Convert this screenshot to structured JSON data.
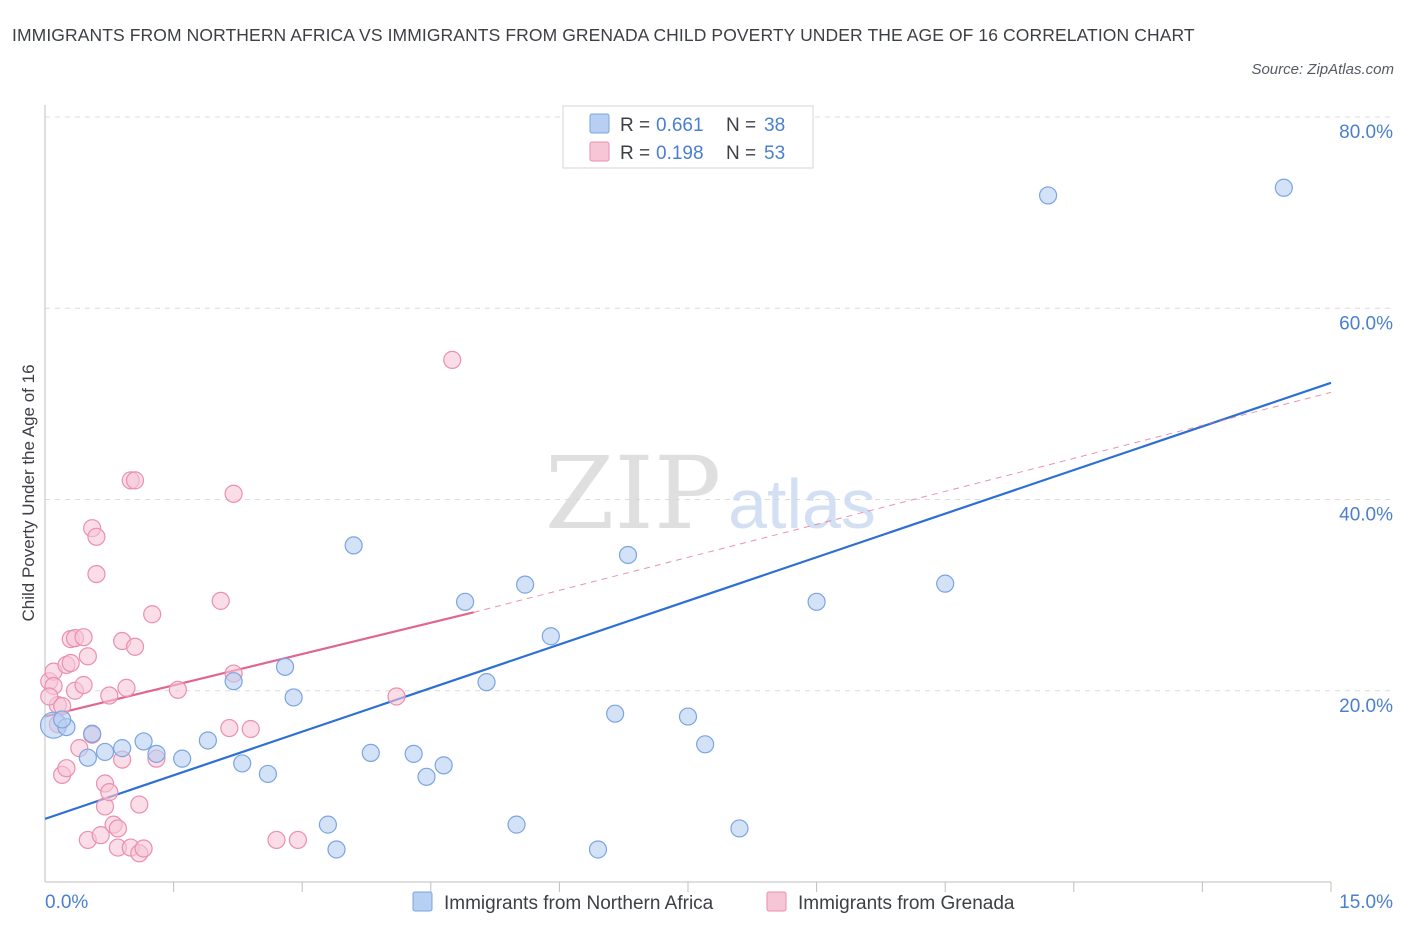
{
  "title": "IMMIGRANTS FROM NORTHERN AFRICA VS IMMIGRANTS FROM GRENADA CHILD POVERTY UNDER THE AGE OF 16 CORRELATION CHART",
  "source": "Source: ZipAtlas.com",
  "watermark": {
    "zip": "ZIP",
    "atlas": "atlas"
  },
  "colors": {
    "blue_fill": "#b7cff2",
    "blue_stroke": "#7ba5e0",
    "blue_line": "#2e6fd3",
    "pink_fill": "#f7c6d6",
    "pink_stroke": "#eb8fae",
    "pink_line": "#e06690",
    "axis_text": "#4a7fd0",
    "grid": "#dcdcdc"
  },
  "legend": {
    "series1": {
      "r_label": "R =",
      "r_value": "0.661",
      "n_label": "N =",
      "n_value": "38"
    },
    "series2": {
      "r_label": "R =",
      "r_value": "0.198",
      "n_label": "N =",
      "n_value": "53"
    }
  },
  "chart_data": {
    "type": "scatter",
    "title": "IMMIGRANTS FROM NORTHERN AFRICA VS IMMIGRANTS FROM GRENADA CHILD POVERTY UNDER THE AGE OF 16 CORRELATION CHART",
    "xlabel": "",
    "ylabel": "Child Poverty Under the Age of 16",
    "xlim": [
      0,
      15
    ],
    "ylim": [
      0,
      80
    ],
    "x_tick_labels": {
      "min": "0.0%",
      "max": "15.0%"
    },
    "y_ticks": [
      20,
      40,
      60,
      80
    ],
    "y_tick_labels": [
      "20.0%",
      "40.0%",
      "60.0%",
      "80.0%"
    ],
    "series": [
      {
        "name": "Immigrants from Northern Africa",
        "color": "blue",
        "points": [
          [
            0.1,
            16.4
          ],
          [
            0.25,
            16.2
          ],
          [
            0.2,
            17.0
          ],
          [
            0.5,
            13.0
          ],
          [
            0.7,
            13.6
          ],
          [
            0.55,
            15.5
          ],
          [
            0.9,
            14.0
          ],
          [
            1.15,
            14.7
          ],
          [
            1.3,
            13.4
          ],
          [
            1.9,
            14.8
          ],
          [
            1.6,
            12.9
          ],
          [
            2.3,
            12.4
          ],
          [
            2.6,
            11.3
          ],
          [
            2.9,
            19.3
          ],
          [
            2.8,
            22.5
          ],
          [
            2.2,
            21.0
          ],
          [
            3.3,
            6.0
          ],
          [
            3.4,
            3.4
          ],
          [
            3.6,
            35.2
          ],
          [
            3.8,
            13.5
          ],
          [
            4.3,
            13.4
          ],
          [
            4.45,
            11.0
          ],
          [
            4.65,
            12.2
          ],
          [
            4.9,
            29.3
          ],
          [
            5.15,
            20.9
          ],
          [
            5.5,
            6.0
          ],
          [
            5.6,
            31.1
          ],
          [
            5.9,
            25.7
          ],
          [
            6.45,
            3.4
          ],
          [
            6.65,
            17.6
          ],
          [
            6.8,
            34.2
          ],
          [
            7.5,
            17.3
          ],
          [
            7.7,
            14.4
          ],
          [
            8.1,
            5.6
          ],
          [
            9.0,
            29.3
          ],
          [
            10.5,
            31.2
          ],
          [
            11.7,
            71.8
          ],
          [
            14.45,
            72.6
          ]
        ]
      },
      {
        "name": "Immigrants from Grenada",
        "color": "pink",
        "points": [
          [
            0.05,
            21.0
          ],
          [
            0.1,
            22.0
          ],
          [
            0.1,
            20.5
          ],
          [
            0.15,
            18.5
          ],
          [
            0.05,
            19.4
          ],
          [
            0.15,
            16.5
          ],
          [
            0.2,
            18.4
          ],
          [
            0.2,
            11.2
          ],
          [
            0.25,
            11.9
          ],
          [
            0.25,
            22.7
          ],
          [
            0.3,
            22.9
          ],
          [
            0.3,
            25.4
          ],
          [
            0.35,
            25.5
          ],
          [
            0.35,
            20.0
          ],
          [
            0.4,
            14.0
          ],
          [
            0.45,
            25.6
          ],
          [
            0.45,
            20.6
          ],
          [
            0.5,
            23.6
          ],
          [
            0.5,
            4.4
          ],
          [
            0.55,
            37.0
          ],
          [
            0.55,
            15.4
          ],
          [
            0.6,
            32.2
          ],
          [
            0.6,
            36.1
          ],
          [
            0.65,
            4.9
          ],
          [
            0.7,
            7.9
          ],
          [
            0.7,
            10.3
          ],
          [
            0.75,
            19.5
          ],
          [
            0.75,
            9.4
          ],
          [
            0.8,
            6.0
          ],
          [
            0.85,
            5.6
          ],
          [
            0.85,
            3.6
          ],
          [
            0.9,
            25.2
          ],
          [
            0.9,
            12.8
          ],
          [
            0.95,
            20.3
          ],
          [
            1.0,
            3.6
          ],
          [
            1.0,
            42.0
          ],
          [
            1.05,
            24.6
          ],
          [
            1.05,
            42.0
          ],
          [
            1.1,
            8.1
          ],
          [
            1.1,
            3.0
          ],
          [
            1.15,
            3.5
          ],
          [
            1.25,
            28.0
          ],
          [
            1.3,
            12.9
          ],
          [
            1.55,
            20.1
          ],
          [
            2.05,
            29.4
          ],
          [
            2.15,
            16.1
          ],
          [
            2.2,
            40.6
          ],
          [
            2.2,
            21.8
          ],
          [
            2.4,
            16.0
          ],
          [
            2.7,
            4.4
          ],
          [
            2.95,
            4.4
          ],
          [
            4.1,
            19.4
          ],
          [
            4.75,
            54.6
          ]
        ]
      }
    ],
    "trendlines": [
      {
        "series": "Immigrants from Northern Africa",
        "x": [
          0,
          15
        ],
        "y": [
          6.6,
          52.2
        ],
        "style": "solid"
      },
      {
        "series": "Immigrants from Grenada",
        "x": [
          0,
          5
        ],
        "y": [
          17.3,
          28.2
        ],
        "style": "solid"
      },
      {
        "series": "Immigrants from Grenada",
        "x": [
          5,
          15
        ],
        "y": [
          28.2,
          51.2
        ],
        "style": "dashed"
      }
    ],
    "grid": true,
    "legend_position": "top-center"
  }
}
